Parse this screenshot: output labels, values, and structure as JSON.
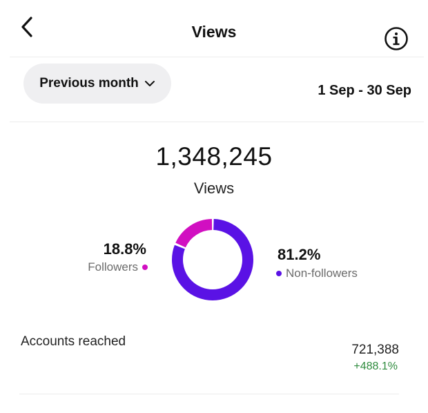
{
  "header": {
    "title": "Views",
    "back_icon": "chevron-left-icon",
    "info_icon": "info-icon"
  },
  "filter": {
    "range_label": "Previous month",
    "dropdown_icon": "chevron-down-icon",
    "date_range": "1 Sep - 30 Sep"
  },
  "summary": {
    "total": "1,348,245",
    "total_label": "Views"
  },
  "breakdown": {
    "followers": {
      "percent": "18.8%",
      "label": "Followers",
      "fraction": 0.188,
      "color": "#d10fc1"
    },
    "non_followers": {
      "percent": "81.2%",
      "label": "Non-followers",
      "fraction": 0.812,
      "color": "#5a12e5"
    }
  },
  "accounts_reached": {
    "label": "Accounts reached",
    "value": "721,388",
    "change": "+488.1%",
    "change_color": "#2e8b3d"
  }
}
